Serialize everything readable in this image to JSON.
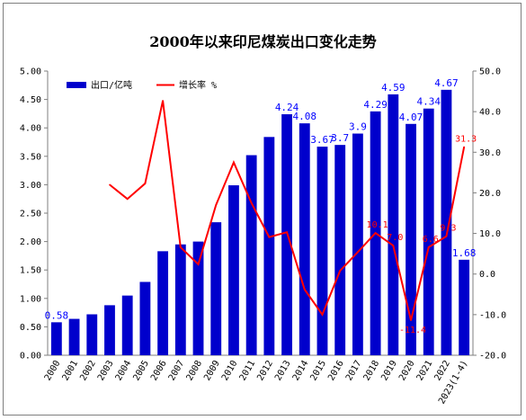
{
  "chart_data": {
    "type": "bar+line",
    "title": "2000年以来印尼煤炭出口变化走势",
    "categories": [
      "2000",
      "2001",
      "2002",
      "2003",
      "2004",
      "2005",
      "2006",
      "2007",
      "2008",
      "2009",
      "2010",
      "2011",
      "2012",
      "2013",
      "2014",
      "2015",
      "2016",
      "2017",
      "2018",
      "2019",
      "2020",
      "2021",
      "2022",
      "2023(1-4)"
    ],
    "series": [
      {
        "name": "出口/亿吨",
        "type": "bar",
        "axis": "left",
        "color": "#0000cc",
        "values": [
          0.58,
          0.64,
          0.72,
          0.88,
          1.05,
          1.29,
          1.83,
          1.95,
          2.0,
          2.34,
          2.99,
          3.52,
          3.84,
          4.24,
          4.08,
          3.67,
          3.7,
          3.9,
          4.29,
          4.59,
          4.07,
          4.34,
          4.67,
          1.68
        ],
        "data_labels": {
          "0": "0.58",
          "13": "4.24",
          "14": "4.08",
          "15": "3.67",
          "16": "3.7",
          "17": "3.9",
          "18": "4.29",
          "19": "4.59",
          "20": "4.07",
          "21": "4.34",
          "22": "4.67",
          "23": "1.68"
        }
      },
      {
        "name": "增长率 %",
        "type": "line",
        "axis": "right",
        "color": "#ff0000",
        "values": [
          null,
          null,
          null,
          22.0,
          18.5,
          22.3,
          42.7,
          6.6,
          2.4,
          17.0,
          27.5,
          17.5,
          9.1,
          10.3,
          -3.8,
          -10.0,
          0.8,
          5.4,
          10.1,
          7.0,
          -11.4,
          6.6,
          9.3,
          31.3
        ],
        "data_labels": {
          "18": "10.1",
          "19": "7.0",
          "20": "-11.4",
          "21": "6.6",
          "22": "9.3",
          "23": "31.3"
        }
      }
    ],
    "y_left": {
      "min": 0,
      "max": 5,
      "ticks": [
        "0.00",
        "0.50",
        "1.00",
        "1.50",
        "2.00",
        "2.50",
        "3.00",
        "3.50",
        "4.00",
        "4.50",
        "5.00"
      ]
    },
    "y_right": {
      "min": -20,
      "max": 50,
      "ticks": [
        "-20.0",
        "-10.0",
        "0.0",
        "10.0",
        "20.0",
        "30.0",
        "40.0",
        "50.0"
      ]
    },
    "legend": "top-left",
    "grid": false
  }
}
